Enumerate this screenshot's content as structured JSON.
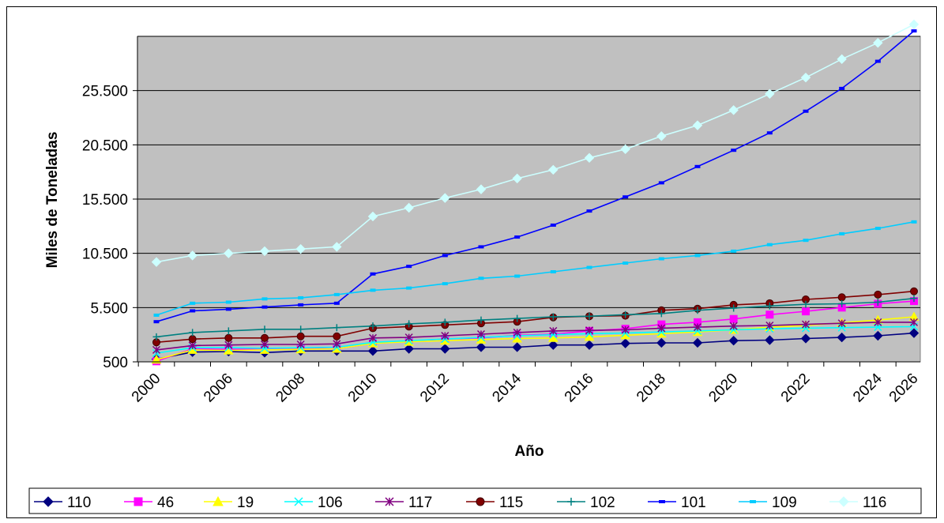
{
  "chart_data": {
    "type": "line",
    "title": "",
    "xlabel": "Año",
    "ylabel": "Miles de Toneladas",
    "x_tick_labels": [
      "2000",
      "2006",
      "2008",
      "2010",
      "2012",
      "2014",
      "2016",
      "2018",
      "2020",
      "2022",
      "2024",
      "2026"
    ],
    "y_tick_labels": [
      "500",
      "5.500",
      "10.500",
      "15.500",
      "20.500",
      "25.500"
    ],
    "y_ticks": [
      500,
      5500,
      10500,
      15500,
      20500,
      25500
    ],
    "ylim": [
      500,
      30500
    ],
    "grid": true,
    "legend_position": "bottom",
    "plot_background": "#c0c0c0",
    "series": [
      {
        "name": "110",
        "color": "#000080",
        "marker": "diamond",
        "values": [
          750,
          1400,
          1450,
          1350,
          1500,
          1500,
          1500,
          1700,
          1700,
          1850,
          1850,
          2050,
          2050,
          2200,
          2250,
          2250,
          2450,
          2500,
          2650,
          2750,
          2900,
          3150
        ]
      },
      {
        "name": "46",
        "color": "#ff00ff",
        "marker": "square",
        "values": [
          550,
          1700,
          1650,
          1700,
          1750,
          1700,
          2200,
          2400,
          2600,
          2700,
          2950,
          3050,
          3350,
          3550,
          3950,
          4150,
          4450,
          4850,
          5150,
          5500,
          5850,
          6100
        ]
      },
      {
        "name": "19",
        "color": "#ffff00",
        "marker": "triangle",
        "values": [
          700,
          1600,
          1550,
          1600,
          1650,
          1700,
          2200,
          2350,
          2450,
          2550,
          2650,
          2700,
          2800,
          2950,
          3100,
          3250,
          3450,
          3700,
          3850,
          4100,
          4350,
          4650
        ]
      },
      {
        "name": "106",
        "color": "#00ffff",
        "marker": "x",
        "values": [
          1300,
          1800,
          1800,
          1750,
          1800,
          1850,
          2300,
          2450,
          2600,
          2750,
          2900,
          3000,
          3100,
          3150,
          3250,
          3350,
          3450,
          3550,
          3600,
          3650,
          3700,
          3750
        ]
      },
      {
        "name": "117",
        "color": "#800080",
        "marker": "asterisk",
        "values": [
          1600,
          2000,
          2050,
          2100,
          2100,
          2150,
          2700,
          2750,
          2900,
          3050,
          3200,
          3350,
          3400,
          3450,
          3600,
          3700,
          3800,
          3850,
          3950,
          4050,
          4150,
          4150
        ]
      },
      {
        "name": "115",
        "color": "#800000",
        "marker": "circle",
        "values": [
          2300,
          2600,
          2700,
          2700,
          2850,
          2850,
          3600,
          3750,
          3900,
          4050,
          4200,
          4600,
          4700,
          4750,
          5250,
          5400,
          5750,
          5900,
          6250,
          6450,
          6700,
          7000
        ]
      },
      {
        "name": "102",
        "color": "#008080",
        "marker": "plus",
        "values": [
          2800,
          3200,
          3350,
          3500,
          3500,
          3650,
          3800,
          4000,
          4150,
          4350,
          4500,
          4650,
          4700,
          4850,
          4950,
          5250,
          5450,
          5650,
          5800,
          5850,
          6000,
          6350
        ]
      },
      {
        "name": "101",
        "color": "#0000ff",
        "marker": "dash",
        "values": [
          4200,
          5200,
          5350,
          5550,
          5750,
          5900,
          8600,
          9300,
          10300,
          11100,
          12000,
          13100,
          14400,
          15700,
          17000,
          18500,
          20000,
          21600,
          23600,
          25700,
          28200,
          31000
        ]
      },
      {
        "name": "109",
        "color": "#00ccff",
        "marker": "dash",
        "values": [
          4800,
          5900,
          6000,
          6300,
          6400,
          6700,
          7100,
          7300,
          7700,
          8200,
          8400,
          8800,
          9200,
          9600,
          10000,
          10300,
          10700,
          11300,
          11700,
          12300,
          12800,
          13400
        ]
      },
      {
        "name": "116",
        "color": "#ccffff",
        "marker": "diamond",
        "values": [
          9700,
          10300,
          10500,
          10700,
          10900,
          11100,
          13900,
          14700,
          15600,
          16400,
          17400,
          18200,
          19300,
          20100,
          21300,
          22300,
          23700,
          25200,
          26700,
          28400,
          29900,
          31600
        ]
      }
    ]
  }
}
